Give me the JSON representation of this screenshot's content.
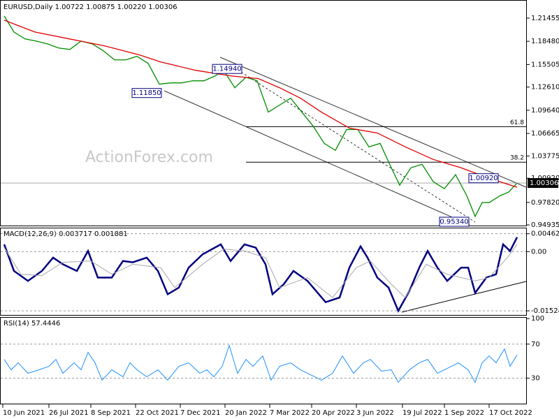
{
  "chart_data": [
    {
      "type": "line",
      "title": "EURUSD,Daily 1.00722 1.00875 1.00220 1.00306",
      "watermark": "ActionForex.com",
      "xlim": [
        0,
        375
      ],
      "ylim": [
        0.9485,
        1.2369
      ],
      "yticks": [
        {
          "value": 1.21455,
          "label": "1.21455"
        },
        {
          "value": 1.1848,
          "label": "1.18480"
        },
        {
          "value": 1.15505,
          "label": "1.15505"
        },
        {
          "value": 1.1261,
          "label": "1.12610"
        },
        {
          "value": 1.0964,
          "label": "1.09640"
        },
        {
          "value": 1.06665,
          "label": "1.06665"
        },
        {
          "value": 1.03775,
          "label": "1.03775"
        },
        {
          "value": 1.0092,
          "label": "1.00920"
        },
        {
          "value": 0.9782,
          "label": "0.97820"
        },
        {
          "value": 0.94935,
          "label": "0.94935"
        }
      ],
      "series": [
        {
          "name": "EURUSD",
          "color": "#008c00",
          "width": 1.3,
          "x": [
            2,
            9,
            17,
            25,
            33,
            41,
            49,
            57,
            65,
            73,
            81,
            89,
            97,
            105,
            113,
            121,
            129,
            137,
            145,
            153,
            159,
            167,
            175,
            183,
            191,
            199,
            207,
            215,
            223,
            231,
            239,
            247,
            255,
            263,
            271,
            279,
            285,
            293,
            301,
            309,
            317,
            325,
            333,
            339,
            344,
            349,
            357,
            363,
            369
          ],
          "values": [
            1.2173,
            1.1967,
            1.1878,
            1.1851,
            1.1815,
            1.1762,
            1.1744,
            1.1851,
            1.1815,
            1.1726,
            1.161,
            1.161,
            1.1655,
            1.1565,
            1.1298,
            1.1315,
            1.1315,
            1.1342,
            1.1342,
            1.1405,
            1.1476,
            1.1253,
            1.1387,
            1.1342,
            1.094,
            1.103,
            1.1119,
            1.094,
            1.0762,
            1.0539,
            1.0449,
            1.0717,
            1.0717,
            1.0494,
            1.0539,
            1.0226,
            1.0003,
            1.0226,
            1.0271,
            1.0048,
            0.9958,
            1.0137,
            0.9869,
            0.9601,
            0.978,
            0.978,
            0.9869,
            0.9914,
            1.0031
          ]
        },
        {
          "name": "MA",
          "color": "#e00000",
          "width": 1.3,
          "x": [
            2,
            24,
            49,
            74,
            99,
            114,
            139,
            164,
            184,
            199,
            214,
            229,
            249,
            269,
            289,
            309,
            329,
            349,
            369
          ],
          "values": [
            1.2119,
            1.1967,
            1.1878,
            1.1789,
            1.1673,
            1.1583,
            1.1476,
            1.1405,
            1.1369,
            1.1253,
            1.1119,
            1.094,
            1.0735,
            1.0672,
            1.0494,
            1.0333,
            1.0226,
            1.0092,
            0.9976
          ]
        }
      ],
      "price_labels": [
        {
          "value": 1.1494,
          "label": "1.14940"
        },
        {
          "value": 1.1185,
          "label": "1.11850"
        },
        {
          "value": 1.0092,
          "label": "1.00920"
        },
        {
          "value": 0.9534,
          "label": "0.95340"
        }
      ],
      "fib_levels": [
        {
          "value": 1.0753,
          "label": "61.8"
        },
        {
          "value": 1.0298,
          "label": "38.2"
        }
      ],
      "last_price": {
        "value": 1.00306,
        "label": "1.00306"
      }
    },
    {
      "type": "line",
      "title": "MACD(12,26,9) 0.003717 0.001881",
      "xlim": [
        0,
        375
      ],
      "ylim": [
        -0.0163,
        0.006
      ],
      "yticks": [
        0.00462,
        {
          "value": 0,
          "label": "0.00"
        },
        -0.01524
      ],
      "series": [
        {
          "name": "MACD",
          "color": "#000080",
          "width": 2.5,
          "x": [
            2,
            9,
            19,
            29,
            37,
            44,
            54,
            62,
            69,
            79,
            87,
            94,
            104,
            112,
            119,
            127,
            134,
            144,
            157,
            164,
            174,
            182,
            189,
            194,
            202,
            209,
            219,
            232,
            242,
            249,
            257,
            262,
            269,
            277,
            284,
            292,
            299,
            305,
            312,
            319,
            329,
            334,
            339,
            347,
            354,
            359,
            364,
            369
          ],
          "values": [
            0.00188,
            -0.00497,
            -0.00753,
            -0.00497,
            -0.00154,
            -0.00325,
            -0.00497,
            0.00017,
            -0.00668,
            -0.00668,
            -0.0024,
            -0.00274,
            -0.00154,
            -0.00497,
            -0.01096,
            -0.00925,
            -0.00411,
            -0.00068,
            0.00188,
            -0.0024,
            0.00188,
            0.00103,
            -0.00325,
            -0.01096,
            -0.00839,
            -0.00497,
            -0.00753,
            -0.01301,
            -0.01182,
            -0.00411,
            0.00137,
            -0.00154,
            -0.00668,
            -0.00925,
            -0.01524,
            -0.0101,
            -0.00411,
            0.00017,
            -0.00411,
            -0.00753,
            -0.00411,
            -0.00411,
            -0.01062,
            -0.00668,
            -0.00582,
            0.00188,
            0.00017,
            0.00372
          ]
        },
        {
          "name": "Signal",
          "color": "#a8a8a8",
          "width": 1,
          "x": [
            2,
            14,
            29,
            44,
            64,
            79,
            94,
            114,
            124,
            144,
            159,
            174,
            189,
            199,
            219,
            237,
            254,
            264,
            279,
            289,
            304,
            319,
            339,
            349,
            362,
            369
          ],
          "values": [
            0.00103,
            -0.00582,
            -0.00616,
            -0.00274,
            -0.0024,
            -0.00582,
            -0.00325,
            -0.00411,
            -0.00925,
            -0.00325,
            0.00068,
            0.00017,
            -0.00154,
            -0.00925,
            -0.00668,
            -0.01182,
            -0.00411,
            -0.0024,
            -0.00839,
            -0.01182,
            -0.00325,
            -0.00582,
            -0.00753,
            -0.00668,
            -0.00154,
            0.00188
          ]
        }
      ]
    },
    {
      "type": "line",
      "title": "RSI(14) 57.4446",
      "xlim": [
        0,
        375
      ],
      "ylim": [
        0,
        101
      ],
      "yticks": [
        100,
        70,
        30
      ],
      "xticks": [
        {
          "value": 1,
          "label": "10 Jun 2021"
        },
        {
          "value": 34,
          "label": "26 Jul 2021"
        },
        {
          "value": 64,
          "label": "8 Sep 2021"
        },
        {
          "value": 96,
          "label": "22 Oct 2021"
        },
        {
          "value": 128,
          "label": "7 Dec 2021"
        },
        {
          "value": 160,
          "label": "20 Jan 2022"
        },
        {
          "value": 192,
          "label": "7 Mar 2022"
        },
        {
          "value": 222,
          "label": "20 Apr 2022"
        },
        {
          "value": 254,
          "label": "3 Jun 2022"
        },
        {
          "value": 287,
          "label": "19 Jul 2022"
        },
        {
          "value": 317,
          "label": "1 Sep 2022"
        },
        {
          "value": 349,
          "label": "17 Oct 2022"
        }
      ],
      "series": [
        {
          "name": "RSI",
          "color": "#1e90ff",
          "width": 1,
          "x": [
            2,
            7,
            12,
            19,
            27,
            34,
            39,
            44,
            52,
            57,
            62,
            67,
            72,
            79,
            87,
            92,
            97,
            104,
            112,
            119,
            127,
            134,
            142,
            147,
            152,
            158,
            163,
            169,
            175,
            180,
            187,
            193,
            199,
            207,
            214,
            222,
            229,
            237,
            244,
            252,
            259,
            264,
            272,
            279,
            284,
            292,
            299,
            305,
            312,
            319,
            327,
            334,
            339,
            344,
            349,
            354,
            360,
            364,
            369
          ],
          "values": [
            52.0,
            39.8,
            48.0,
            35.7,
            39.8,
            43.9,
            52.0,
            35.7,
            48.0,
            39.8,
            60.2,
            48.0,
            27.6,
            39.8,
            31.6,
            48.0,
            39.8,
            31.6,
            39.8,
            27.6,
            43.9,
            48.0,
            35.7,
            39.8,
            31.6,
            43.9,
            68.4,
            35.7,
            52.0,
            43.9,
            56.1,
            27.6,
            43.9,
            48.0,
            39.8,
            33.3,
            27.6,
            35.7,
            56.1,
            35.7,
            48.0,
            52.0,
            38.2,
            39.8,
            25.1,
            39.8,
            48.0,
            52.0,
            35.7,
            41.4,
            48.0,
            39.8,
            25.1,
            48.0,
            56.1,
            48.0,
            64.3,
            43.9,
            57.4
          ]
        }
      ]
    }
  ]
}
